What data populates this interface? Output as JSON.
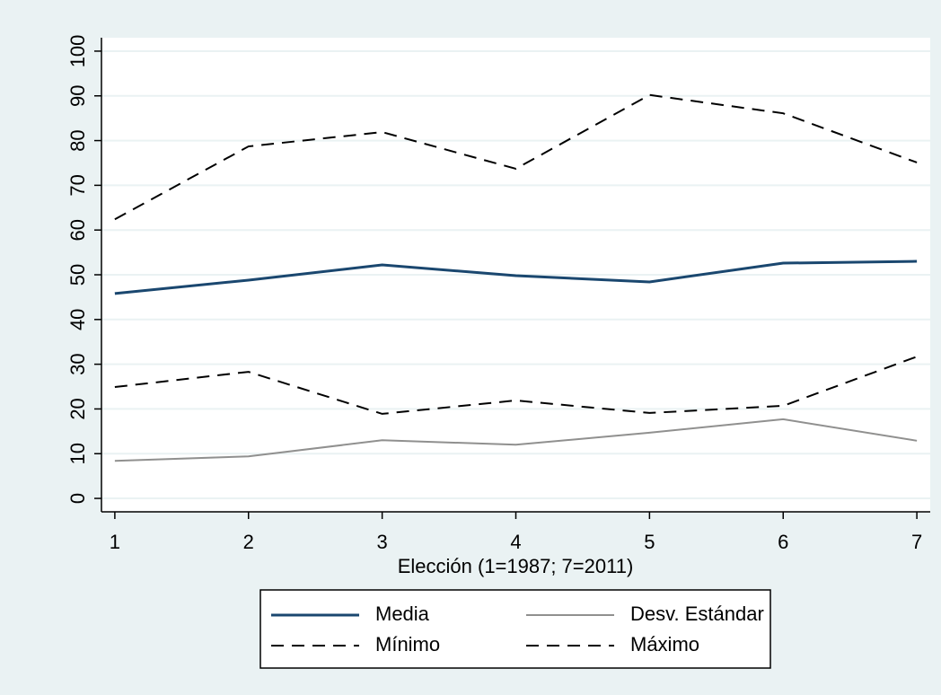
{
  "chart_data": {
    "type": "line",
    "x_label": "Elección (1=1987; 7=2011)",
    "x": [
      1,
      2,
      3,
      4,
      5,
      6,
      7
    ],
    "series": [
      {
        "name": "Media",
        "color": "#1a476f",
        "line_style": "solid",
        "values": [
          45.8,
          48.8,
          52.2,
          49.8,
          48.4,
          52.6,
          53.0
        ]
      },
      {
        "name": "Desv. Estándar",
        "color": "#90908f",
        "line_style": "solid",
        "values": [
          8.4,
          9.4,
          13.0,
          12.0,
          14.7,
          17.7,
          12.9
        ]
      },
      {
        "name": "Mínimo",
        "color": "#000000",
        "line_style": "dashed",
        "values": [
          24.9,
          28.3,
          18.9,
          21.9,
          19.1,
          20.7,
          31.7
        ]
      },
      {
        "name": "Máximo",
        "color": "#000000",
        "line_style": "dashed",
        "values": [
          62.4,
          78.7,
          81.9,
          73.7,
          90.2,
          86.1,
          75.1
        ]
      }
    ],
    "xlim": [
      0.9,
      7.1
    ],
    "xticks": [
      1,
      2,
      3,
      4,
      5,
      6,
      7
    ],
    "ylim": [
      -3,
      103
    ],
    "yticks": [
      0,
      10,
      20,
      30,
      40,
      50,
      60,
      70,
      80,
      90,
      100
    ],
    "grid": true,
    "legend_position": "bottom"
  }
}
